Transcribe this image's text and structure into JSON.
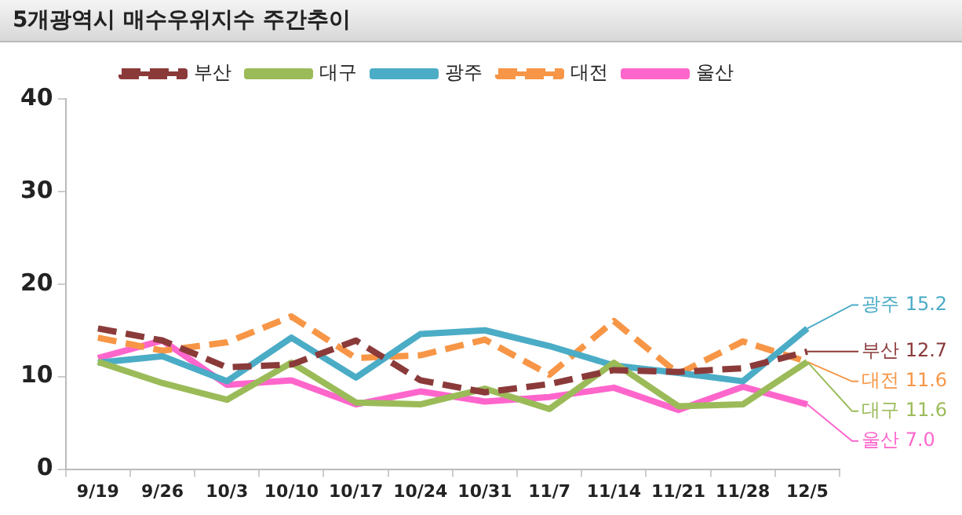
{
  "chart_data": {
    "type": "line",
    "title": "5개광역시 매수우위지수 주간추이",
    "categories": [
      "9/19",
      "9/26",
      "10/3",
      "10/10",
      "10/17",
      "10/24",
      "10/31",
      "11/7",
      "11/14",
      "11/21",
      "11/28",
      "12/5"
    ],
    "series": [
      {
        "name": "부산",
        "color": "#8b3a3a",
        "line_style": "dashed",
        "values": [
          15.2,
          13.9,
          11.0,
          11.3,
          13.9,
          9.6,
          8.3,
          9.2,
          10.7,
          10.5,
          10.9,
          12.7
        ],
        "value_labels": [
          null,
          null,
          null,
          null,
          null,
          null,
          null,
          null,
          null,
          null,
          null,
          "12.7"
        ]
      },
      {
        "name": "대구",
        "color": "#9bbb59",
        "line_style": "solid",
        "values": [
          11.6,
          9.3,
          7.5,
          11.5,
          7.2,
          7.0,
          8.7,
          6.5,
          11.5,
          6.8,
          7.0,
          11.6
        ],
        "value_labels": [
          null,
          null,
          null,
          null,
          null,
          null,
          null,
          null,
          null,
          null,
          null,
          "11.6"
        ]
      },
      {
        "name": "광주",
        "color": "#4bacc6",
        "line_style": "solid",
        "values": [
          11.5,
          12.2,
          9.5,
          14.2,
          9.9,
          14.6,
          15.0,
          13.3,
          11.2,
          10.4,
          9.5,
          15.2
        ],
        "value_labels": [
          null,
          null,
          null,
          null,
          null,
          null,
          null,
          null,
          null,
          null,
          null,
          "15.2"
        ]
      },
      {
        "name": "대전",
        "color": "#f79646",
        "line_style": "dashed",
        "values": [
          14.2,
          12.8,
          13.7,
          16.5,
          12.0,
          12.3,
          14.0,
          10.2,
          16.0,
          10.3,
          13.8,
          11.6
        ],
        "value_labels": [
          null,
          null,
          null,
          null,
          null,
          null,
          null,
          null,
          null,
          null,
          null,
          "11.6"
        ]
      },
      {
        "name": "울산",
        "color": "#ff66cc",
        "line_style": "solid",
        "values": [
          12.0,
          13.9,
          9.1,
          9.6,
          7.0,
          8.4,
          7.3,
          7.8,
          8.8,
          6.4,
          8.9,
          7.0
        ],
        "value_labels": [
          null,
          null,
          null,
          null,
          null,
          null,
          null,
          null,
          null,
          null,
          null,
          "7.0"
        ]
      }
    ],
    "ylim": [
      0,
      40
    ],
    "yticks": [
      0,
      10,
      20,
      30,
      40
    ],
    "grid": false,
    "legend": "top",
    "marker": "none"
  }
}
